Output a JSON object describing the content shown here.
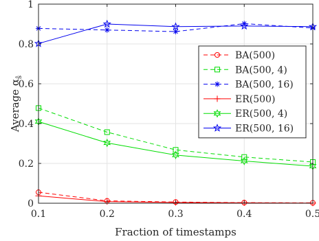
{
  "chart_data": {
    "type": "line",
    "title": "",
    "xlabel": "Fraction of timestamps",
    "ylabel": "Average α_ŝ",
    "xlim": [
      0.1,
      0.5
    ],
    "ylim": [
      0,
      1
    ],
    "x": [
      0.1,
      0.2,
      0.3,
      0.4,
      0.5
    ],
    "x_tick_labels": [
      "0.1",
      "0.2",
      "0.3",
      "0.4",
      "0.5"
    ],
    "y_ticks": [
      0,
      0.2,
      0.4,
      0.6,
      0.8,
      1
    ],
    "y_tick_labels": [
      "0",
      "0.2",
      "0.4",
      "0.6",
      "0.8",
      "1"
    ],
    "grid": true,
    "legend_position": "right",
    "series": [
      {
        "name": "BA(500)",
        "color": "#ff0000",
        "dash": "dashed",
        "marker": "circle",
        "values": [
          0.055,
          0.012,
          0.006,
          0.003,
          0.002
        ]
      },
      {
        "name": "BA(500, 4)",
        "color": "#00dd00",
        "dash": "dashed",
        "marker": "square",
        "values": [
          0.478,
          0.357,
          0.268,
          0.232,
          0.207
        ]
      },
      {
        "name": "BA(500, 16)",
        "color": "#0000ee",
        "dash": "dashed",
        "marker": "asterisk",
        "values": [
          0.878,
          0.87,
          0.862,
          0.902,
          0.88
        ]
      },
      {
        "name": "ER(500)",
        "color": "#ff0000",
        "dash": "solid",
        "marker": "plus",
        "values": [
          0.037,
          0.008,
          0.004,
          0.002,
          0.001
        ]
      },
      {
        "name": "ER(500, 4)",
        "color": "#00dd00",
        "dash": "solid",
        "marker": "star6",
        "values": [
          0.41,
          0.303,
          0.242,
          0.212,
          0.186
        ]
      },
      {
        "name": "ER(500, 16)",
        "color": "#0000ee",
        "dash": "solid",
        "marker": "star5",
        "values": [
          0.802,
          0.9,
          0.887,
          0.89,
          0.887
        ]
      }
    ]
  }
}
